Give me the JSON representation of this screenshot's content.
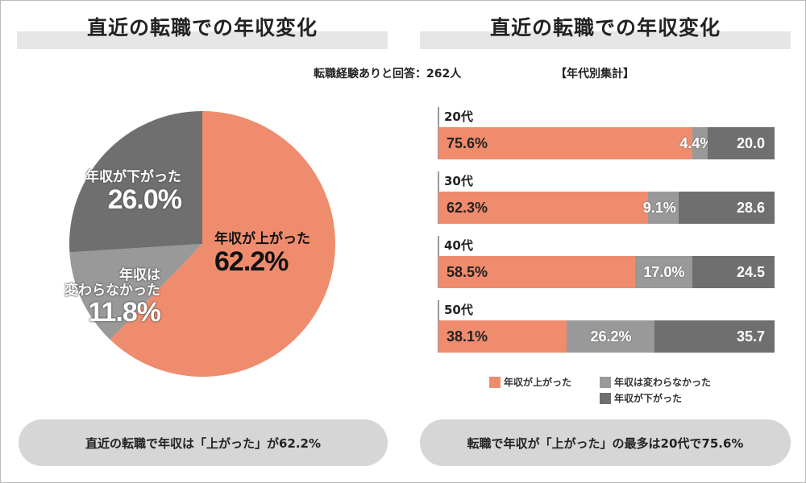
{
  "left": {
    "title": "直近の転職での年収変化",
    "footer": "直近の転職で年収は「上がった」が62.2%"
  },
  "right": {
    "title": "直近の転職での年収変化",
    "respondents": "転職経験ありと回答：262人",
    "subtitle": "【年代別集計】",
    "footer": "転職で年収が「上がった」の最多は20代で75.6%"
  },
  "colors": {
    "up": "#ef8c6e",
    "same": "#999999",
    "down": "#6f6f6f"
  },
  "chart_data": [
    {
      "type": "pie",
      "title": "直近の転職での年収変化",
      "slices": [
        {
          "label": "年収が上がった",
          "value": 62.2,
          "display": "62.2%"
        },
        {
          "label_lines": [
            "年収は",
            "変わらなかった"
          ],
          "label": "年収は変わらなかった",
          "value": 11.8,
          "display": "11.8%"
        },
        {
          "label": "年収が下がった",
          "value": 26.0,
          "display": "26.0%"
        }
      ]
    },
    {
      "type": "bar",
      "stacked": true,
      "orientation": "horizontal",
      "title": "【年代別集計】",
      "categories": [
        "20代",
        "30代",
        "40代",
        "50代"
      ],
      "series": [
        {
          "name": "年収が上がった",
          "values": [
            75.6,
            62.3,
            58.5,
            38.1
          ],
          "labels": [
            "75.6%",
            "62.3%",
            "58.5%",
            "38.1%"
          ]
        },
        {
          "name": "年収は変わらなかった",
          "values": [
            4.4,
            9.1,
            17.0,
            26.2
          ],
          "labels": [
            "4.4%",
            "9.1%",
            "17.0%",
            "26.2%"
          ]
        },
        {
          "name": "年収が下がった",
          "values": [
            20.0,
            28.6,
            24.5,
            35.7
          ],
          "labels": [
            "20.0",
            "28.6",
            "24.5",
            "35.7"
          ]
        }
      ],
      "xlim": [
        0,
        100
      ],
      "legend": "bottom"
    }
  ]
}
